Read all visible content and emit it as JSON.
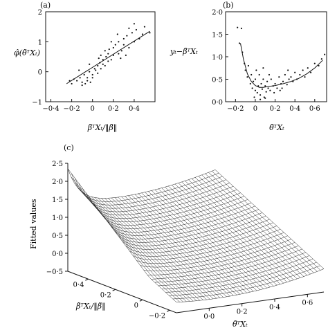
{
  "panels": {
    "a": {
      "label": "(a)",
      "ylabel": "φ̂(θ̃ᵀXₜ)",
      "xlabel": "β̃ᵀXₜ/‖β̃‖",
      "xticks": [
        "−0·4",
        "−0·2",
        "0",
        "0·2",
        "0·4"
      ],
      "yticks": [
        "2",
        "1",
        "0",
        "−1"
      ]
    },
    "b": {
      "label": "(b)",
      "ylabel": "yₜ−β̃ᵀXₜ",
      "xlabel": "θ̃ᵀXₜ",
      "xticks": [
        "−0·2",
        "0",
        "0·2",
        "0·4",
        "0·6"
      ],
      "yticks": [
        "2·0",
        "1·5",
        "1·0",
        "0·5",
        "0·0"
      ]
    },
    "c": {
      "label": "(c)",
      "zlabel": "Fitted values",
      "xlabel": "θ̃ᵀXₜ",
      "ylabel": "β̃ᵀXₜ/‖β̃‖",
      "zticks": [
        "2·5",
        "2·0",
        "1·5",
        "1·0",
        "0·5",
        "0·0",
        "−0·5"
      ],
      "yticks": [
        "0·4",
        "0·2",
        "0",
        "−0·2"
      ],
      "xticks": [
        "0·0",
        "0·2",
        "0·4",
        "0·6"
      ]
    }
  },
  "chart_data": [
    {
      "type": "scatter",
      "panel": "a",
      "xlim": [
        -0.45,
        0.6
      ],
      "ylim": [
        -1,
        2
      ],
      "fit_line": {
        "x": [
          -0.25,
          0.55
        ],
        "y": [
          -0.4,
          1.35
        ]
      },
      "points": [
        [
          -0.15,
          -0.3
        ],
        [
          -0.12,
          -0.2
        ],
        [
          -0.1,
          -0.35
        ],
        [
          -0.08,
          -0.1
        ],
        [
          -0.05,
          -0.2
        ],
        [
          -0.05,
          -0.3
        ],
        [
          -0.03,
          0.0
        ],
        [
          0.0,
          -0.1
        ],
        [
          0.0,
          -0.2
        ],
        [
          0.02,
          0.1
        ],
        [
          0.03,
          0.05
        ],
        [
          0.05,
          0.2
        ],
        [
          0.05,
          -0.05
        ],
        [
          0.07,
          0.3
        ],
        [
          0.08,
          0.1
        ],
        [
          0.1,
          0.25
        ],
        [
          0.1,
          0.4
        ],
        [
          0.12,
          0.2
        ],
        [
          0.13,
          0.5
        ],
        [
          0.15,
          0.35
        ],
        [
          0.15,
          0.6
        ],
        [
          0.18,
          0.4
        ],
        [
          0.2,
          0.55
        ],
        [
          0.2,
          0.8
        ],
        [
          0.22,
          0.9
        ],
        [
          0.25,
          0.6
        ],
        [
          0.25,
          1.0
        ],
        [
          0.28,
          0.7
        ],
        [
          0.3,
          1.1
        ],
        [
          0.3,
          0.9
        ],
        [
          0.33,
          1.2
        ],
        [
          0.35,
          0.8
        ],
        [
          0.38,
          1.3
        ],
        [
          0.4,
          1.0
        ],
        [
          0.42,
          1.4
        ],
        [
          0.45,
          1.1
        ],
        [
          0.5,
          1.5
        ],
        [
          -0.2,
          -0.4
        ],
        [
          -0.18,
          -0.25
        ],
        [
          -0.22,
          -0.3
        ],
        [
          -0.1,
          -0.45
        ],
        [
          -0.07,
          -0.4
        ],
        [
          -0.02,
          -0.35
        ],
        [
          0.06,
          0.45
        ],
        [
          0.16,
          0.75
        ],
        [
          0.24,
          1.25
        ],
        [
          0.12,
          0.7
        ],
        [
          0.08,
          0.55
        ],
        [
          0.35,
          1.45
        ],
        [
          0.27,
          0.45
        ],
        [
          -0.13,
          0.05
        ],
        [
          -0.03,
          0.25
        ],
        [
          0.18,
          1.0
        ],
        [
          0.32,
          0.55
        ],
        [
          0.4,
          1.6
        ],
        [
          0.48,
          1.25
        ],
        [
          0.55,
          1.3
        ]
      ]
    },
    {
      "type": "scatter",
      "panel": "b",
      "xlim": [
        -0.3,
        0.72
      ],
      "ylim": [
        0,
        2
      ],
      "fit_line": {
        "x": [
          -0.15,
          -0.12,
          -0.08,
          -0.04,
          0.0,
          0.04,
          0.08,
          0.14,
          0.2,
          0.28,
          0.36,
          0.44,
          0.52,
          0.6,
          0.68
        ],
        "y": [
          1.3,
          0.95,
          0.62,
          0.45,
          0.36,
          0.32,
          0.32,
          0.34,
          0.36,
          0.4,
          0.45,
          0.52,
          0.62,
          0.75,
          0.92
        ]
      },
      "points": [
        [
          -0.18,
          1.65
        ],
        [
          -0.14,
          1.63
        ],
        [
          -0.16,
          1.3
        ],
        [
          -0.13,
          1.1
        ],
        [
          -0.11,
          0.85
        ],
        [
          -0.1,
          0.7
        ],
        [
          -0.08,
          0.55
        ],
        [
          -0.07,
          0.8
        ],
        [
          -0.05,
          0.4
        ],
        [
          -0.04,
          0.6
        ],
        [
          -0.03,
          0.3
        ],
        [
          -0.02,
          0.45
        ],
        [
          0.0,
          0.25
        ],
        [
          0.0,
          0.5
        ],
        [
          0.02,
          0.2
        ],
        [
          0.03,
          0.35
        ],
        [
          0.04,
          0.6
        ],
        [
          0.05,
          0.15
        ],
        [
          0.06,
          0.4
        ],
        [
          0.07,
          0.28
        ],
        [
          0.08,
          0.5
        ],
        [
          0.09,
          0.1
        ],
        [
          0.1,
          0.35
        ],
        [
          0.11,
          0.22
        ],
        [
          0.12,
          0.45
        ],
        [
          0.13,
          0.3
        ],
        [
          0.15,
          0.25
        ],
        [
          0.16,
          0.5
        ],
        [
          0.18,
          0.35
        ],
        [
          0.2,
          0.4
        ],
        [
          0.22,
          0.3
        ],
        [
          0.24,
          0.55
        ],
        [
          0.26,
          0.4
        ],
        [
          0.28,
          0.45
        ],
        [
          0.3,
          0.6
        ],
        [
          0.32,
          0.38
        ],
        [
          0.34,
          0.5
        ],
        [
          0.36,
          0.55
        ],
        [
          0.38,
          0.45
        ],
        [
          0.4,
          0.65
        ],
        [
          0.42,
          0.5
        ],
        [
          0.45,
          0.6
        ],
        [
          0.48,
          0.7
        ],
        [
          0.5,
          0.55
        ],
        [
          0.53,
          0.75
        ],
        [
          0.56,
          0.65
        ],
        [
          0.6,
          0.85
        ],
        [
          0.64,
          0.8
        ],
        [
          0.67,
          0.95
        ],
        [
          0.7,
          1.05
        ],
        [
          0.05,
          0.05
        ],
        [
          0.1,
          0.08
        ],
        [
          0.14,
          0.6
        ],
        [
          0.19,
          0.2
        ],
        [
          0.25,
          0.25
        ],
        [
          0.01,
          0.7
        ],
        [
          0.08,
          0.75
        ],
        [
          -0.01,
          0.1
        ],
        [
          0.27,
          0.3
        ],
        [
          0.33,
          0.7
        ]
      ]
    },
    {
      "type": "surface",
      "panel": "c",
      "xlim": [
        -0.2,
        0.7
      ],
      "ylim": [
        -0.25,
        0.55
      ],
      "zlim": [
        -0.5,
        2.5
      ]
    }
  ]
}
